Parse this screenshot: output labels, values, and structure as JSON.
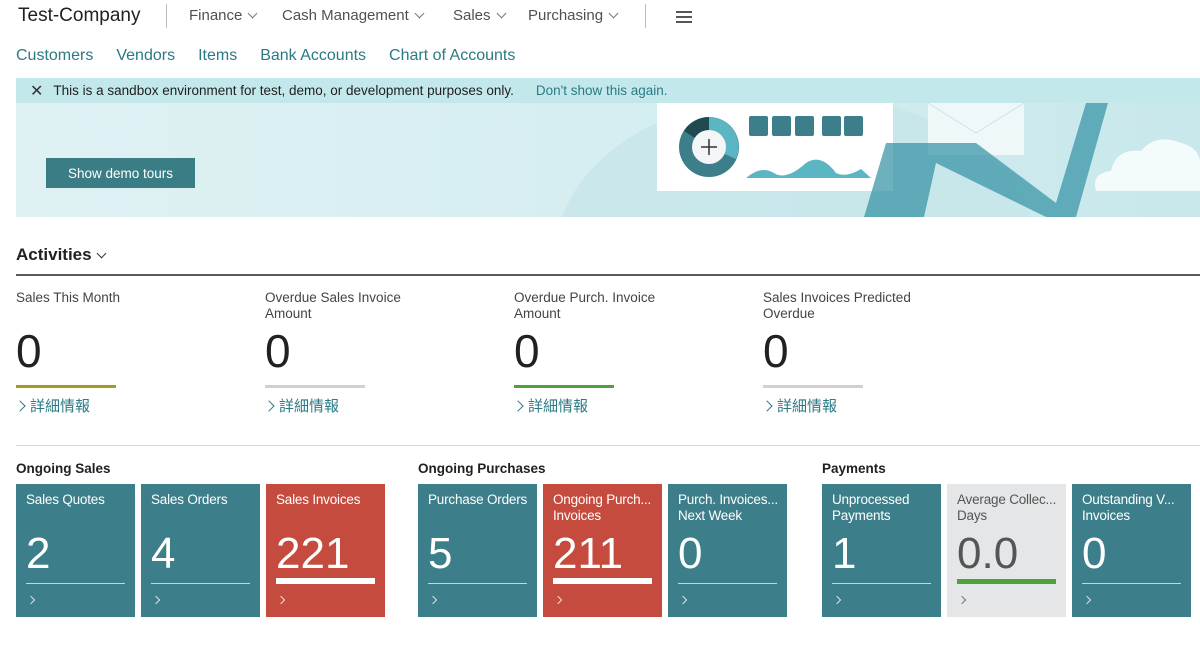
{
  "header": {
    "company": "Test-Company",
    "menus": [
      "Finance",
      "Cash Management",
      "Sales",
      "Purchasing"
    ]
  },
  "nav": [
    "Customers",
    "Vendors",
    "Items",
    "Bank Accounts",
    "Chart of Accounts"
  ],
  "notice": {
    "text": "This is a sandbox environment for test, demo, or development purposes only.",
    "link": "Don't show this again."
  },
  "banner": {
    "button": "Show demo tours"
  },
  "activities": {
    "title": "Activities",
    "more_label": "詳細情報",
    "kpis": [
      {
        "label": "Sales This Month",
        "value": "0",
        "bar_color": "#a59a1e"
      },
      {
        "label": "Overdue Sales Invoice Amount",
        "value": "0",
        "bar_color": "#d0d0d0"
      },
      {
        "label": "Overdue Purch. Invoice Amount",
        "value": "0",
        "bar_color": "#4ea23a"
      },
      {
        "label": "Sales Invoices Predicted Overdue",
        "value": "0",
        "bar_color": "#d0d0d0"
      }
    ]
  },
  "groups": [
    {
      "title": "Ongoing Sales",
      "tiles": [
        {
          "label": "Sales Quotes",
          "value": "2",
          "style": "teal"
        },
        {
          "label": "Sales Orders",
          "value": "4",
          "style": "teal"
        },
        {
          "label": "Sales Invoices",
          "value": "221",
          "style": "red"
        }
      ]
    },
    {
      "title": "Ongoing Purchases",
      "tiles": [
        {
          "label": "Purchase Orders",
          "value": "5",
          "style": "teal"
        },
        {
          "label": "Ongoing Purch...\nInvoices",
          "value": "211",
          "style": "red"
        },
        {
          "label": "Purch. Invoices...\nNext Week",
          "value": "0",
          "style": "teal"
        }
      ]
    },
    {
      "title": "Payments",
      "tiles": [
        {
          "label": "Unprocessed\nPayments",
          "value": "1",
          "style": "teal"
        },
        {
          "label": "Average Collec...\nDays",
          "value": "0.0",
          "style": "gray"
        },
        {
          "label": "Outstanding V...\nInvoices",
          "value": "0",
          "style": "teal"
        }
      ]
    }
  ]
}
